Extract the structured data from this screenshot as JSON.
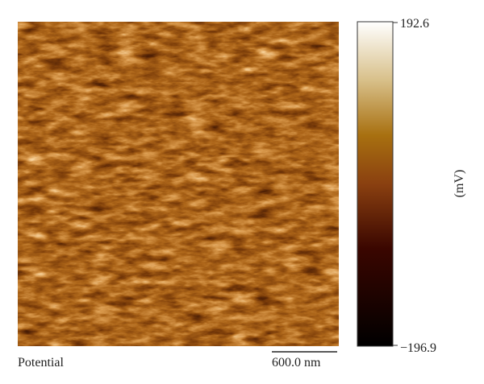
{
  "image": {
    "label": "Potential",
    "scale_bar": "600.0 nm"
  },
  "colorbar": {
    "max": "192.6",
    "min": "−196.9",
    "unit": "(mV)"
  }
}
